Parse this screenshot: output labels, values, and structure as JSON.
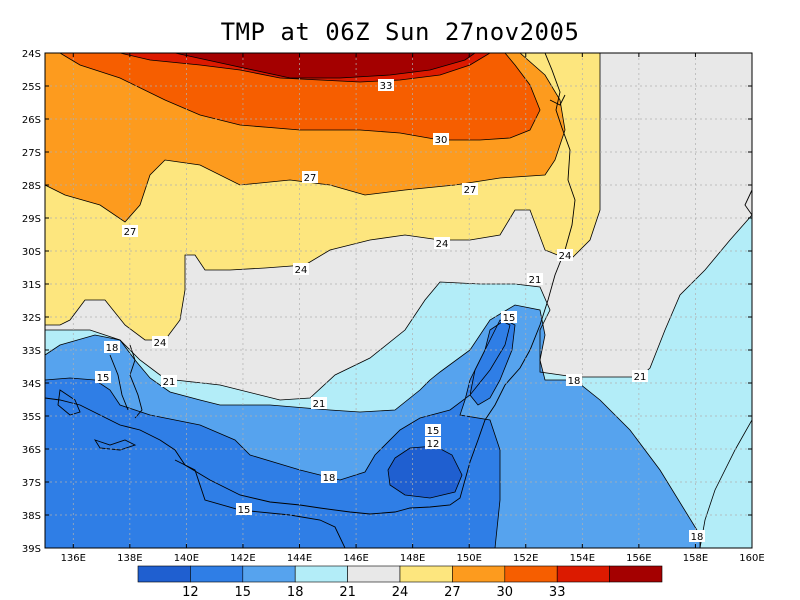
{
  "title": "TMP at 06Z Sun 27nov2005",
  "y_ticks": [
    "24S",
    "25S",
    "26S",
    "27S",
    "28S",
    "29S",
    "30S",
    "31S",
    "32S",
    "33S",
    "34S",
    "35S",
    "36S",
    "37S",
    "38S",
    "39S"
  ],
  "x_ticks": [
    "136E",
    "138E",
    "140E",
    "142E",
    "144E",
    "146E",
    "148E",
    "150E",
    "152E",
    "154E",
    "156E",
    "158E",
    "160E"
  ],
  "colorbar": {
    "colors": [
      "#1f5fd0",
      "#2f7ee6",
      "#56a3ee",
      "#b3edf8",
      "#e8e8e8",
      "#fde67e",
      "#fd9b1e",
      "#f65e00",
      "#dc1a00",
      "#a40000"
    ],
    "labels": [
      "12",
      "15",
      "18",
      "21",
      "24",
      "27",
      "30",
      "33"
    ]
  },
  "contour_labels": [
    {
      "text": "33"
    },
    {
      "text": "30"
    },
    {
      "text": "27"
    },
    {
      "text": "27"
    },
    {
      "text": "27"
    },
    {
      "text": "24"
    },
    {
      "text": "24"
    },
    {
      "text": "24"
    },
    {
      "text": "24"
    },
    {
      "text": "21"
    },
    {
      "text": "21"
    },
    {
      "text": "21"
    },
    {
      "text": "21"
    },
    {
      "text": "18"
    },
    {
      "text": "18"
    },
    {
      "text": "18"
    },
    {
      "text": "18"
    },
    {
      "text": "15"
    },
    {
      "text": "15"
    },
    {
      "text": "15"
    },
    {
      "text": "15"
    },
    {
      "text": "12"
    }
  ],
  "chart_data": {
    "type": "heatmap",
    "title": "TMP at 06Z Sun 27nov2005",
    "variable": "TMP",
    "x_range": [
      "135E",
      "160E"
    ],
    "y_range": [
      "24S",
      "39S"
    ],
    "contour_levels": [
      12,
      15,
      18,
      21,
      24,
      27,
      30,
      33
    ],
    "grid": true
  }
}
